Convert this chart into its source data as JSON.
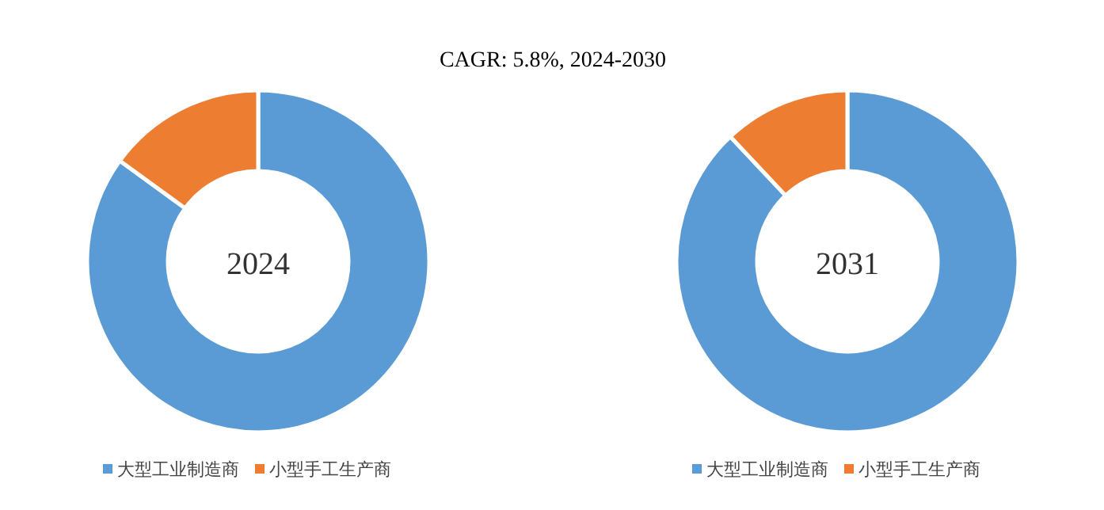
{
  "chart_data": [
    {
      "type": "donut",
      "title": "2024",
      "annotations": [
        "CAGR:      5.8%, 2024-2030"
      ],
      "categories": [
        "大型工业制造商",
        "小型手工生产商"
      ],
      "values": [
        85,
        15
      ],
      "colors": [
        "#5b9bd5",
        "#ed7d31"
      ],
      "legend": "bottom"
    },
    {
      "type": "donut",
      "title": "2031",
      "categories": [
        "大型工业制造商",
        "小型手工生产商"
      ],
      "values": [
        88,
        12
      ],
      "colors": [
        "#5b9bd5",
        "#ed7d31"
      ],
      "legend": "bottom"
    }
  ]
}
